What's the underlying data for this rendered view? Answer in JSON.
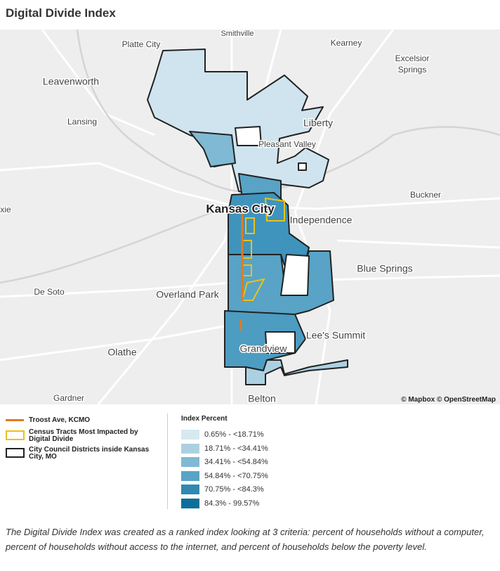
{
  "title": "Digital Divide Index",
  "map": {
    "place_labels": [
      "Smithville",
      "Platte City",
      "Kearney",
      "Excelsior",
      "Springs",
      "Leavenworth",
      "Lansing",
      "Liberty",
      "Pleasant Valley",
      "Buckner",
      "xie",
      "Kansas City",
      "Independence",
      "Blue Springs",
      "De Soto",
      "Overland Park",
      "Lee's Summit",
      "Grandview",
      "Olathe",
      "Gardner",
      "Belton"
    ],
    "attribution": "© Mapbox © OpenStreetMap"
  },
  "legend": {
    "items": [
      {
        "label": "Troost Ave, KCMO",
        "color": "#e07b1f"
      },
      {
        "label": "Census Tracts Most Impacted by Digital Divide",
        "color": "#e8c21c"
      },
      {
        "label": "City Council Districts inside Kansas City, MO",
        "color": "#222222"
      }
    ],
    "index_title": "Index Percent",
    "classes": [
      {
        "label": "0.65% - <18.71%",
        "color": "#d6e9f1"
      },
      {
        "label": "18.71% - <34.41%",
        "color": "#abd1e1"
      },
      {
        "label": "34.41% - <54.84%",
        "color": "#80b9d4"
      },
      {
        "label": "54.84% - <70.75%",
        "color": "#58a3c6"
      },
      {
        "label": "70.75% - <84.3%",
        "color": "#2f89b0"
      },
      {
        "label": "84.3% - 99.57%",
        "color": "#0c6f99"
      }
    ]
  },
  "caption": "The Digital Divide Index was created as a ranked index looking at 3 criteria: percent of households without a computer, percent of households without access to the internet, and percent of households below the poverty level."
}
